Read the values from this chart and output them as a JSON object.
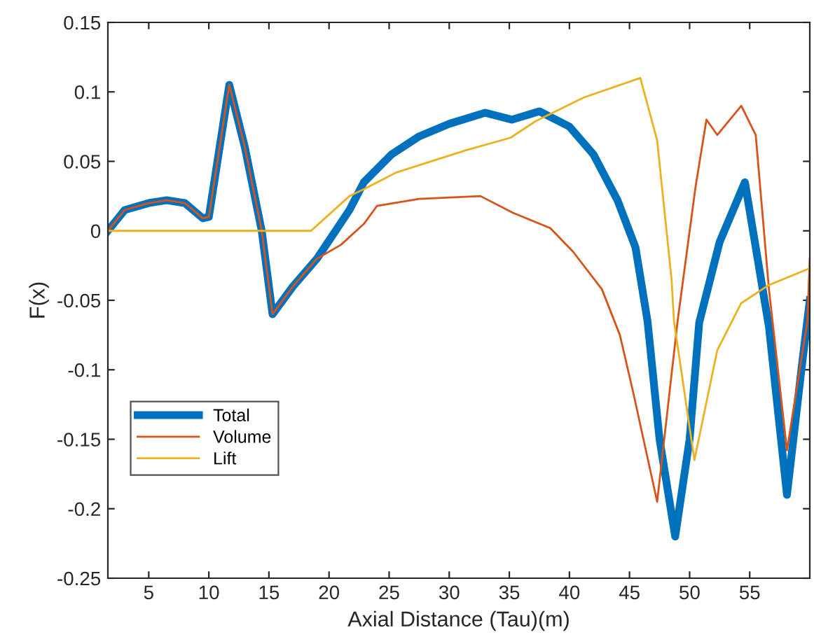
{
  "chart_data": {
    "type": "line",
    "xlabel": "Axial Distance (Tau)(m)",
    "ylabel": "F(x)",
    "xlim": [
      1.6,
      60
    ],
    "ylim": [
      -0.25,
      0.15
    ],
    "xticks": [
      5,
      10,
      15,
      20,
      25,
      30,
      35,
      40,
      45,
      50,
      55
    ],
    "yticks": [
      -0.25,
      -0.2,
      -0.15,
      -0.1,
      -0.05,
      0,
      0.05,
      0.1,
      0.15
    ],
    "grid": false,
    "legend": "bottom left",
    "marker": "none",
    "line_style": "solid",
    "series": [
      {
        "name": "Total",
        "color": "#0072bd",
        "x": [
          1.6,
          3,
          5,
          6.5,
          8,
          9.5,
          10,
          11.7,
          13,
          14.4,
          15.3,
          17,
          19,
          21.7,
          22.9,
          25.2,
          27.5,
          30,
          33,
          35.2,
          37.5,
          40,
          42,
          44,
          45.5,
          46.5,
          47.5,
          48.8,
          50,
          50.8,
          52.5,
          54.6,
          56.6,
          58.1,
          59.3,
          60
        ],
        "values": [
          0,
          0.015,
          0.02,
          0.022,
          0.02,
          0.009,
          0.01,
          0.105,
          0.06,
          0,
          -0.06,
          -0.04,
          -0.02,
          0.015,
          0.035,
          0.055,
          0.068,
          0.077,
          0.085,
          0.08,
          0.086,
          0.075,
          0.055,
          0.022,
          -0.012,
          -0.065,
          -0.15,
          -0.22,
          -0.15,
          -0.066,
          -0.008,
          0.035,
          -0.069,
          -0.19,
          -0.1,
          -0.05
        ]
      },
      {
        "name": "Volume",
        "color": "#d95319",
        "x": [
          1.6,
          3,
          5,
          6.5,
          8,
          9.5,
          10,
          11.7,
          13,
          14.4,
          15.3,
          17,
          19,
          21,
          22.9,
          24,
          27.5,
          32.6,
          35.3,
          38.4,
          40.3,
          42.7,
          44.2,
          45.3,
          47.3,
          49,
          50.5,
          51.4,
          52.3,
          54.3,
          55.5,
          56.6,
          58.1,
          59.8,
          60
        ],
        "values": [
          0,
          0.015,
          0.02,
          0.022,
          0.02,
          0.009,
          0.01,
          0.105,
          0.06,
          0,
          -0.06,
          -0.04,
          -0.02,
          -0.01,
          0.005,
          0.018,
          0.023,
          0.025,
          0.013,
          0.002,
          -0.015,
          -0.042,
          -0.075,
          -0.116,
          -0.195,
          -0.065,
          0.032,
          0.08,
          0.069,
          0.09,
          0.069,
          -0.042,
          -0.158,
          -0.065,
          -0.02
        ]
      },
      {
        "name": "Lift",
        "color": "#edb120",
        "x": [
          1.6,
          18.5,
          21.7,
          22.9,
          25.6,
          31.4,
          35.1,
          37.2,
          41.2,
          45.9,
          47.3,
          48.5,
          48.7,
          50.4,
          52.3,
          54.3,
          56.6,
          60
        ],
        "values": [
          0,
          0,
          0.025,
          0.03,
          0.042,
          0.058,
          0.067,
          0.079,
          0.096,
          0.11,
          0.065,
          -0.035,
          -0.065,
          -0.165,
          -0.086,
          -0.052,
          -0.039,
          -0.027
        ]
      }
    ]
  }
}
